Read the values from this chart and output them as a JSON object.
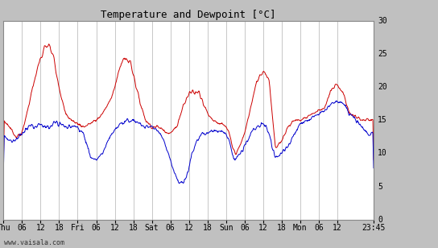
{
  "title": "Temperature and Dewpoint [°C]",
  "ylim": [
    0,
    30
  ],
  "yticks": [
    0,
    5,
    10,
    15,
    20,
    25,
    30
  ],
  "bg_color": "#c0c0c0",
  "plot_bg_color": "#ffffff",
  "grid_color": "#b0b0b0",
  "temp_color": "#cc0000",
  "dew_color": "#0000cc",
  "watermark": "www.vaisala.com",
  "x_labels": [
    "Thu",
    "06",
    "12",
    "18",
    "Fri",
    "06",
    "12",
    "18",
    "Sat",
    "06",
    "12",
    "18",
    "Sun",
    "06",
    "12",
    "18",
    "Mon",
    "06",
    "12",
    "23:45"
  ],
  "x_positions": [
    0,
    6,
    12,
    18,
    24,
    30,
    36,
    42,
    48,
    54,
    60,
    66,
    72,
    78,
    84,
    90,
    96,
    102,
    108,
    119.75
  ],
  "n_points": 960
}
